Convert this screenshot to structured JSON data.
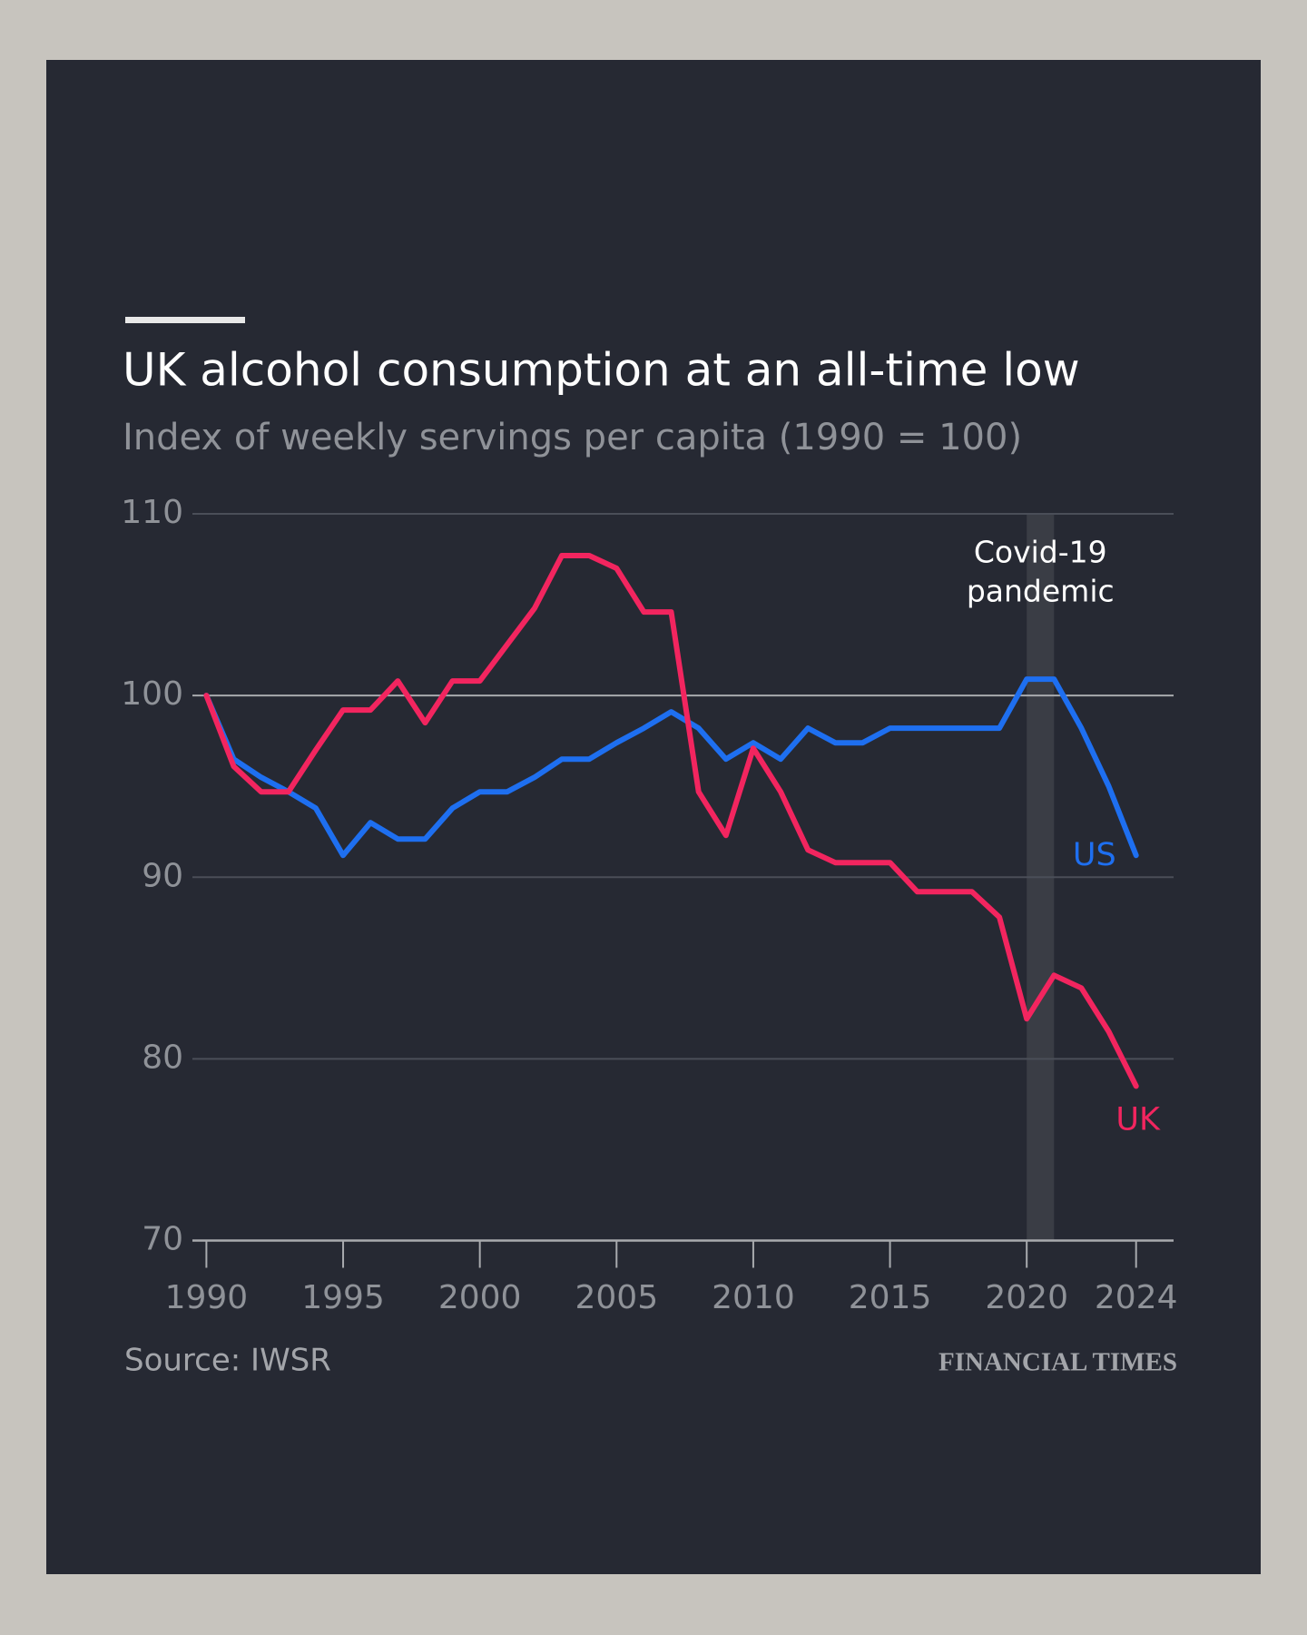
{
  "chart_data": {
    "type": "line",
    "title": "UK alcohol consumption at an all-time low",
    "subtitle": "Index of weekly servings per capita (1990 = 100)",
    "source": "Source: IWSR",
    "publisher": "FINANCIAL TIMES",
    "x": [
      1990,
      1991,
      1992,
      1993,
      1994,
      1995,
      1996,
      1997,
      1998,
      1999,
      2000,
      2001,
      2002,
      2003,
      2004,
      2005,
      2006,
      2007,
      2008,
      2009,
      2010,
      2011,
      2012,
      2013,
      2014,
      2015,
      2016,
      2017,
      2018,
      2019,
      2020,
      2021,
      2022,
      2023,
      2024
    ],
    "series": [
      {
        "name": "US",
        "color": "#1e6ff0",
        "values": [
          100,
          96.5,
          95.5,
          94.7,
          93.8,
          91.2,
          93,
          92.1,
          92.1,
          93.8,
          94.7,
          94.7,
          95.5,
          96.5,
          96.5,
          97.4,
          98.2,
          99.1,
          98.2,
          96.5,
          97.4,
          96.5,
          98.2,
          97.4,
          97.4,
          98.2,
          98.2,
          98.2,
          98.2,
          98.2,
          100.9,
          100.9,
          98.2,
          95,
          91.2
        ]
      },
      {
        "name": "UK",
        "color": "#f2255f",
        "values": [
          100,
          96.1,
          94.7,
          94.7,
          97,
          99.2,
          99.2,
          100.8,
          98.5,
          100.8,
          100.8,
          102.8,
          104.8,
          107.7,
          107.7,
          107,
          104.6,
          104.6,
          94.7,
          92.3,
          97.1,
          94.7,
          91.5,
          90.8,
          90.8,
          90.8,
          89.2,
          89.2,
          89.2,
          87.8,
          82.2,
          84.6,
          83.9,
          81.5,
          78.5
        ]
      }
    ],
    "xlim": [
      1990,
      2024
    ],
    "xticks": [
      1990,
      1995,
      2000,
      2005,
      2010,
      2015,
      2020,
      2024
    ],
    "ylim": [
      70,
      110
    ],
    "yticks": [
      70,
      80,
      90,
      100,
      110
    ],
    "grid": true,
    "reference_line": 100,
    "shade": {
      "x": [
        2020,
        2021
      ],
      "label": [
        "Covid-19",
        "pandemic"
      ]
    }
  }
}
